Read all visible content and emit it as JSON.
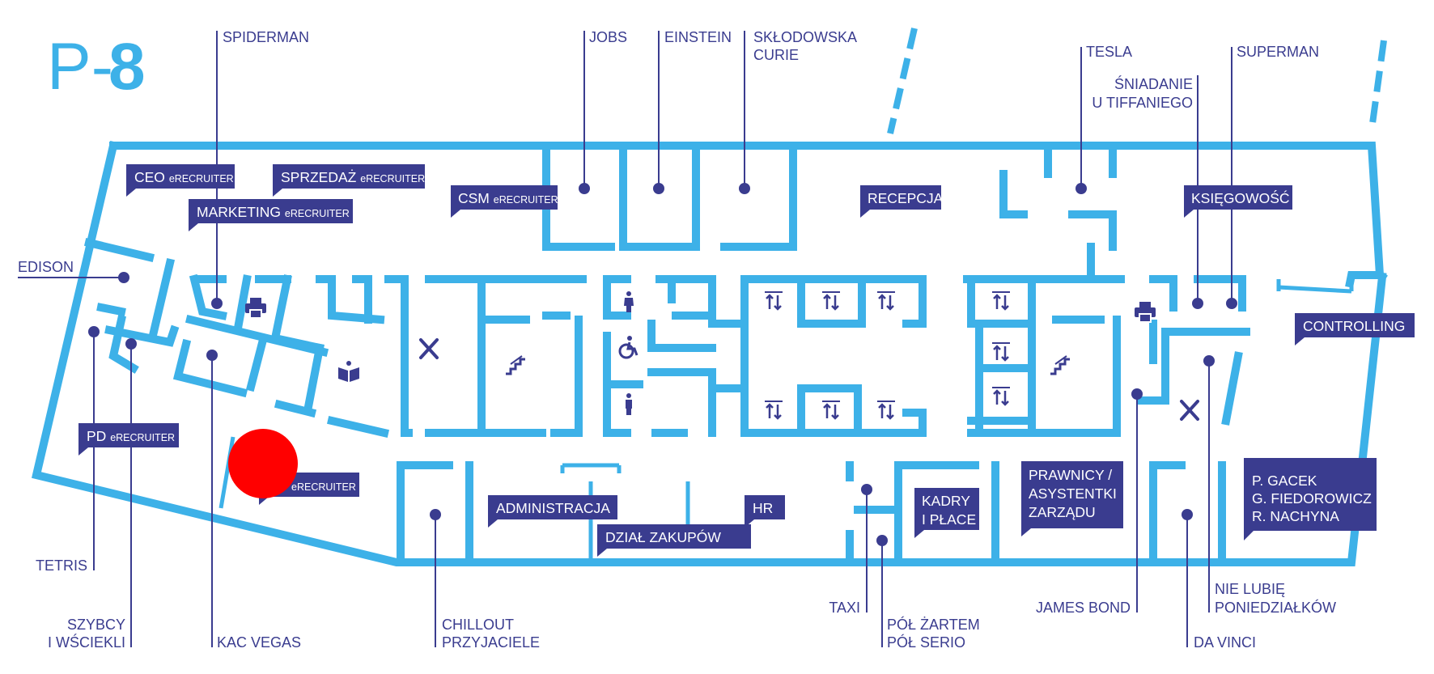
{
  "title": {
    "prefix": "P-",
    "number": "8"
  },
  "colors": {
    "wall": "#3db1e8",
    "label": "#3a3c8f",
    "tag_bg": "#3a3c8f",
    "tag_text": "#ffffff",
    "marker": "#ff0000"
  },
  "rooms": {
    "spiderman": "SPIDERMAN",
    "jobs": "JOBS",
    "einstein": "EINSTEIN",
    "sklodowska_1": "SKŁODOWSKA",
    "sklodowska_2": "CURIE",
    "tesla": "TESLA",
    "sniadanie_1": "ŚNIADANIE",
    "sniadanie_2": "U TIFFANIEGO",
    "superman": "SUPERMAN",
    "edison": "EDISON",
    "tetris": "TETRIS",
    "szybcy_1": "SZYBCY",
    "szybcy_2": "I WŚCIEKLI",
    "kac_vegas": "KAC VEGAS",
    "chillout_1": "CHILLOUT",
    "chillout_2": "PRZYJACIELE",
    "taxi": "TAXI",
    "pol_1": "PÓŁ ŻARTEM",
    "pol_2": "PÓŁ SERIO",
    "james_bond": "JAMES BOND",
    "nie_lubie_1": "NIE LUBIĘ",
    "nie_lubie_2": "PONIEDZIAŁKÓW",
    "da_vinci": "DA VINCI"
  },
  "tags": {
    "ceo": {
      "main": "CEO",
      "suffix": "eRECRUITER"
    },
    "sprzedaz": {
      "main": "SPRZEDAŻ",
      "suffix": "eRECRUITER"
    },
    "marketing": {
      "main": "MARKETING",
      "suffix": "eRECRUITER"
    },
    "csm": {
      "main": "CSM",
      "suffix": "eRECRUITER"
    },
    "recepcja": {
      "main": "RECEPCJA"
    },
    "ksiegowosc": {
      "main": "KSIĘGOWOŚĆ"
    },
    "controlling": {
      "main": "CONTROLLING"
    },
    "pd": {
      "main": "PD",
      "suffix": "eRECRUITER"
    },
    "hidden": {
      "suffix": "eRECRUITER"
    },
    "administracja": {
      "main": "ADMINISTRACJA"
    },
    "hr": {
      "main": "HR"
    },
    "dzial_zakupow": {
      "main": "DZIAŁ ZAKUPÓW"
    },
    "kadry": {
      "line1": "KADRY",
      "line2": "I PŁACE"
    },
    "prawnicy": {
      "line1": "PRAWNICY /",
      "line2": "ASYSTENTKI",
      "line3": "ZARZĄDU"
    },
    "zarzad": {
      "line1": "P. GACEK",
      "line2": "G. FIEDOROWICZ",
      "line3": "R. NACHYNA"
    }
  },
  "icons": {
    "printer": "printer-icon",
    "library": "book-icon",
    "kitchen": "cutlery-icon",
    "stairs": "stairs-icon",
    "toilet": "person-icon",
    "accessible": "wheelchair-icon",
    "elevator": "elevator-icon",
    "marker": "location-marker"
  }
}
